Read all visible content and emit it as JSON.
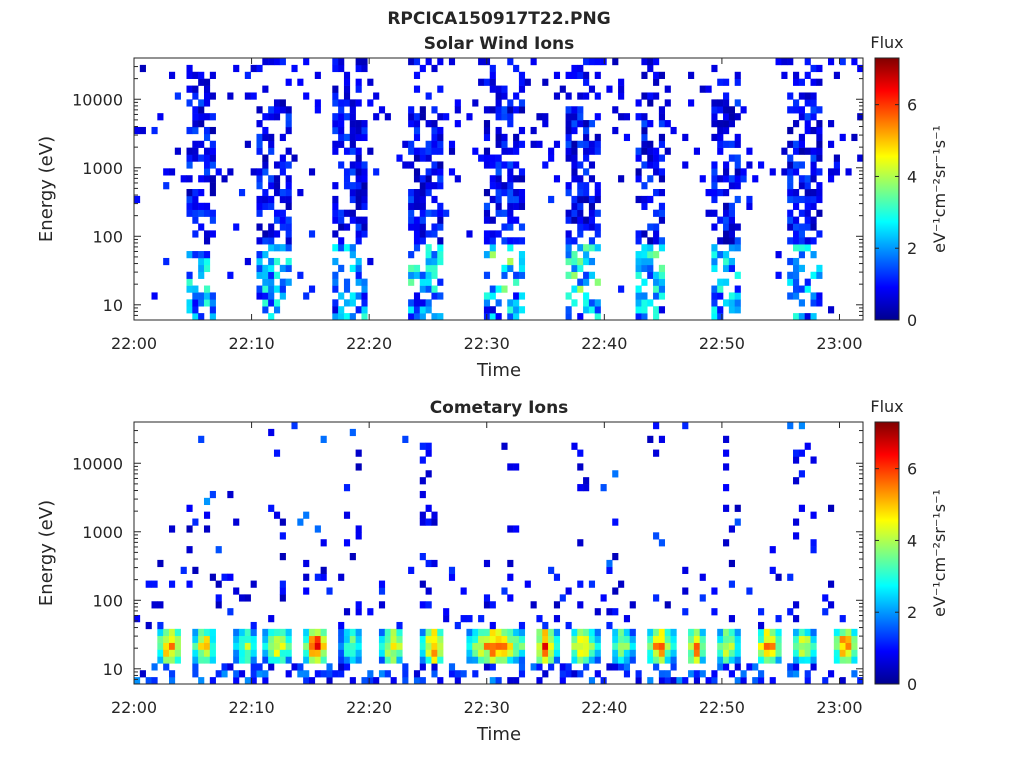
{
  "figure": {
    "title": "RPCICA150917T22.PNG"
  },
  "chart_data": [
    {
      "type": "heatmap",
      "title": "Solar Wind Ions",
      "xlabel": "Time",
      "ylabel": "Energy (eV)",
      "x_ticks": [
        "22:00",
        "22:10",
        "22:20",
        "22:30",
        "22:40",
        "22:50",
        "23:00"
      ],
      "x_range_minutes": [
        0,
        62
      ],
      "y_scale": "log",
      "y_ticks": [
        "10",
        "100",
        "1000",
        "10000"
      ],
      "y_tick_values": [
        10,
        100,
        1000,
        10000
      ],
      "ylim": [
        6,
        40000
      ],
      "colorbar": {
        "label": "Flux",
        "unit": "eV⁻¹cm⁻²sr⁻¹s⁻¹",
        "range": [
          0,
          7.3
        ],
        "ticks": [
          0,
          2,
          4,
          6
        ],
        "colormap": "jet"
      },
      "bursts": [
        {
          "start": 4.5,
          "end": 7.0,
          "intensity": 1.0
        },
        {
          "start": 10.5,
          "end": 13.5,
          "intensity": 1.0
        },
        {
          "start": 17.0,
          "end": 20.0,
          "intensity": 1.0
        },
        {
          "start": 23.5,
          "end": 26.5,
          "intensity": 1.1
        },
        {
          "start": 30.0,
          "end": 33.0,
          "intensity": 1.3
        },
        {
          "start": 36.5,
          "end": 39.5,
          "intensity": 1.3
        },
        {
          "start": 42.5,
          "end": 45.0,
          "intensity": 1.2
        },
        {
          "start": 49.0,
          "end": 51.5,
          "intensity": 1.0
        },
        {
          "start": 55.5,
          "end": 58.5,
          "intensity": 1.0
        }
      ],
      "grid": false
    },
    {
      "type": "heatmap",
      "title": "Cometary Ions",
      "xlabel": "Time",
      "ylabel": "Energy (eV)",
      "x_ticks": [
        "22:00",
        "22:10",
        "22:20",
        "22:30",
        "22:40",
        "22:50",
        "23:00"
      ],
      "x_range_minutes": [
        0,
        62
      ],
      "y_scale": "log",
      "y_ticks": [
        "10",
        "100",
        "1000",
        "10000"
      ],
      "y_tick_values": [
        10,
        100,
        1000,
        10000
      ],
      "ylim": [
        6,
        40000
      ],
      "colorbar": {
        "label": "Flux",
        "unit": "eV⁻¹cm⁻²sr⁻¹s⁻¹",
        "range": [
          0,
          7.3
        ],
        "ticks": [
          0,
          2,
          4,
          6
        ],
        "colormap": "jet"
      },
      "bands": [
        {
          "start": 2.0,
          "end": 4.0,
          "peak": 6.5
        },
        {
          "start": 5.0,
          "end": 7.0,
          "peak": 5.5
        },
        {
          "start": 8.5,
          "end": 10.5,
          "peak": 4.5
        },
        {
          "start": 11.0,
          "end": 13.5,
          "peak": 5.0
        },
        {
          "start": 14.5,
          "end": 16.5,
          "peak": 7.0
        },
        {
          "start": 17.5,
          "end": 19.5,
          "peak": 4.0
        },
        {
          "start": 21.0,
          "end": 23.0,
          "peak": 5.5
        },
        {
          "start": 24.5,
          "end": 26.5,
          "peak": 6.0
        },
        {
          "start": 28.5,
          "end": 33.0,
          "peak": 6.5
        },
        {
          "start": 34.0,
          "end": 36.0,
          "peak": 6.5
        },
        {
          "start": 37.0,
          "end": 39.5,
          "peak": 5.5
        },
        {
          "start": 40.5,
          "end": 42.5,
          "peak": 4.5
        },
        {
          "start": 43.5,
          "end": 46.0,
          "peak": 6.0
        },
        {
          "start": 47.0,
          "end": 48.5,
          "peak": 6.5
        },
        {
          "start": 49.5,
          "end": 51.5,
          "peak": 5.0
        },
        {
          "start": 53.0,
          "end": 55.0,
          "peak": 6.5
        },
        {
          "start": 56.0,
          "end": 58.0,
          "peak": 5.0
        },
        {
          "start": 59.5,
          "end": 61.5,
          "peak": 6.5
        }
      ],
      "grid": false
    }
  ]
}
